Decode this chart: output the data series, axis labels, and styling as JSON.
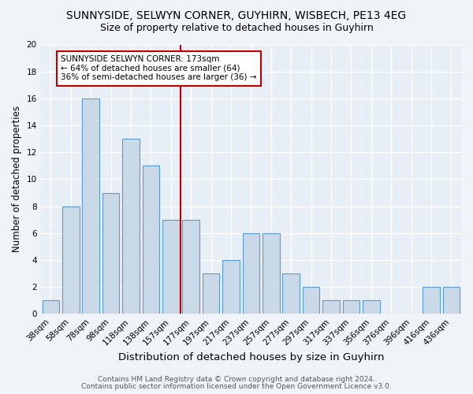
{
  "title": "SUNNYSIDE, SELWYN CORNER, GUYHIRN, WISBECH, PE13 4EG",
  "subtitle": "Size of property relative to detached houses in Guyhirn",
  "xlabel": "Distribution of detached houses by size in Guyhirn",
  "ylabel": "Number of detached properties",
  "footer1": "Contains HM Land Registry data © Crown copyright and database right 2024.",
  "footer2": "Contains public sector information licensed under the Open Government Licence v3.0.",
  "bar_labels": [
    "38sqm",
    "58sqm",
    "78sqm",
    "98sqm",
    "118sqm",
    "138sqm",
    "157sqm",
    "177sqm",
    "197sqm",
    "217sqm",
    "237sqm",
    "257sqm",
    "277sqm",
    "297sqm",
    "317sqm",
    "337sqm",
    "356sqm",
    "376sqm",
    "396sqm",
    "416sqm",
    "436sqm"
  ],
  "bar_values": [
    1,
    8,
    16,
    9,
    13,
    11,
    7,
    7,
    3,
    4,
    6,
    6,
    3,
    2,
    1,
    1,
    1,
    0,
    0,
    2,
    2
  ],
  "bar_color": "#c9d9e8",
  "bar_edge_color": "#5b9bd5",
  "vline_index": 7,
  "vline_color": "#c00000",
  "annotation_text": "SUNNYSIDE SELWYN CORNER: 173sqm\n← 64% of detached houses are smaller (64)\n36% of semi-detached houses are larger (36) →",
  "annotation_box_color": "#ffffff",
  "annotation_box_edge": "#c00000",
  "ylim": [
    0,
    20
  ],
  "yticks": [
    0,
    2,
    4,
    6,
    8,
    10,
    12,
    14,
    16,
    18,
    20
  ],
  "bg_color": "#f0f4f8",
  "plot_bg_color": "#e8eef5",
  "grid_color": "#ffffff",
  "title_fontsize": 10,
  "subtitle_fontsize": 9,
  "xlabel_fontsize": 9.5,
  "ylabel_fontsize": 8.5,
  "tick_fontsize": 7.5,
  "annot_fontsize": 7.5,
  "footer_fontsize": 6.5
}
